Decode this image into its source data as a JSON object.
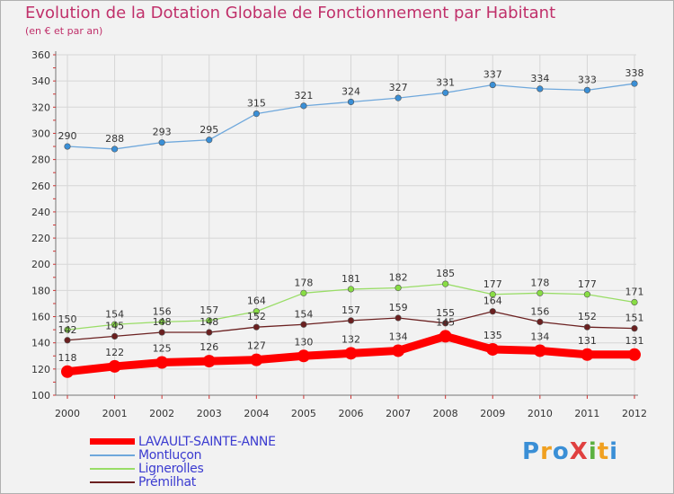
{
  "chart_data": {
    "type": "line",
    "title": "Evolution de la Dotation Globale de Fonctionnement par Habitant",
    "subtitle": "(en € et par an)",
    "xlabel": "",
    "ylabel": "",
    "categories": [
      "2000",
      "2001",
      "2002",
      "2003",
      "2004",
      "2005",
      "2006",
      "2007",
      "2008",
      "2009",
      "2010",
      "2011",
      "2012"
    ],
    "ylim": [
      100,
      360
    ],
    "yticks": [
      100,
      120,
      140,
      160,
      180,
      200,
      220,
      240,
      260,
      280,
      300,
      320,
      340,
      360
    ],
    "grid": true,
    "legend_position": "bottom-left",
    "series": [
      {
        "name": "LAVAULT-SAINTE-ANNE",
        "color": "#ff0000",
        "values": [
          118,
          122,
          125,
          126,
          127,
          130,
          132,
          134,
          145,
          135,
          134,
          131,
          131
        ]
      },
      {
        "name": "Montluçon",
        "color": "#6fa8dc",
        "values": [
          290,
          288,
          293,
          295,
          315,
          321,
          324,
          327,
          331,
          337,
          334,
          333,
          338
        ]
      },
      {
        "name": "Lignerolles",
        "color": "#99dd66",
        "values": [
          150,
          154,
          156,
          157,
          164,
          178,
          181,
          182,
          185,
          177,
          178,
          177,
          171
        ]
      },
      {
        "name": "Prémilhat",
        "color": "#6b2020",
        "values": [
          142,
          145,
          148,
          148,
          152,
          154,
          157,
          159,
          155,
          164,
          156,
          152,
          151
        ]
      }
    ]
  },
  "logo": {
    "text": "ProXiti",
    "letters": [
      "P",
      "r",
      "o",
      "X",
      "i",
      "t",
      "i"
    ],
    "colors": [
      "#3a8fd6",
      "#f0a020",
      "#3a8fd6",
      "#e04040",
      "#5ab040",
      "#f0a020",
      "#3a8fd6"
    ]
  }
}
